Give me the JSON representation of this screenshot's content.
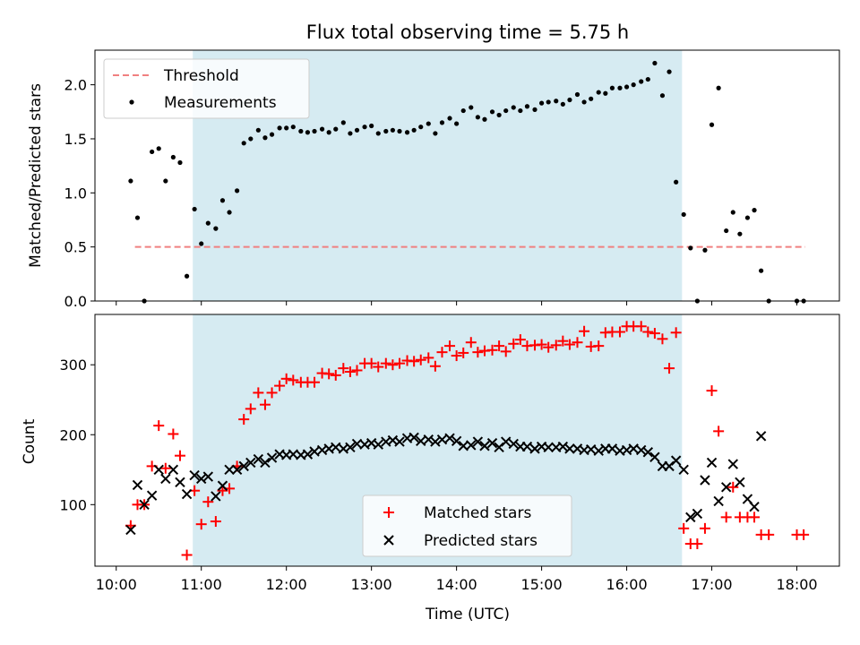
{
  "figure": {
    "title": "Flux total observing time = 5.75 h",
    "xlabel": "Time (UTC)",
    "x_ticks": [
      "10:00",
      "11:00",
      "12:00",
      "13:00",
      "14:00",
      "15:00",
      "16:00",
      "17:00",
      "18:00"
    ],
    "observing_window": {
      "start_h": 10.9,
      "end_h": 16.65,
      "color": "#add8e6"
    }
  },
  "chart_data": [
    {
      "type": "scatter",
      "ylabel": "Matched/Predicted stars",
      "xlim_hours": [
        9.75,
        18.5
      ],
      "ylim": [
        0,
        2.32
      ],
      "y_ticks": [
        "0.0",
        "0.5",
        "1.0",
        "1.5",
        "2.0"
      ],
      "legend_position": "upper left",
      "threshold": {
        "name": "Threshold",
        "y": 0.5,
        "x_range_hours": [
          10.22,
          18.1
        ],
        "color": "#f08080"
      },
      "series": [
        {
          "name": "Measurements",
          "color": "#000000",
          "x_hours": [
            10.17,
            10.25,
            10.33,
            10.42,
            10.5,
            10.58,
            10.67,
            10.75,
            10.83,
            10.92,
            11.0,
            11.08,
            11.17,
            11.25,
            11.33,
            11.42,
            11.5,
            11.58,
            11.67,
            11.75,
            11.83,
            11.92,
            12.0,
            12.08,
            12.17,
            12.25,
            12.33,
            12.42,
            12.5,
            12.58,
            12.67,
            12.75,
            12.83,
            12.92,
            13.0,
            13.08,
            13.17,
            13.25,
            13.33,
            13.42,
            13.5,
            13.58,
            13.67,
            13.75,
            13.83,
            13.92,
            14.0,
            14.08,
            14.17,
            14.25,
            14.33,
            14.42,
            14.5,
            14.58,
            14.67,
            14.75,
            14.83,
            14.92,
            15.0,
            15.08,
            15.17,
            15.25,
            15.33,
            15.42,
            15.5,
            15.58,
            15.67,
            15.75,
            15.83,
            15.92,
            16.0,
            16.08,
            16.17,
            16.25,
            16.33,
            16.42,
            16.5,
            16.58,
            16.67,
            16.75,
            16.83,
            16.92,
            17.0,
            17.08,
            17.17,
            17.25,
            17.33,
            17.42,
            17.5,
            17.58,
            17.67,
            18.0,
            18.08
          ],
          "values": [
            1.11,
            0.77,
            0.0,
            1.38,
            1.41,
            1.11,
            1.33,
            1.28,
            0.23,
            0.85,
            0.53,
            0.72,
            0.67,
            0.93,
            0.82,
            1.02,
            1.46,
            1.5,
            1.58,
            1.51,
            1.54,
            1.6,
            1.6,
            1.61,
            1.57,
            1.56,
            1.57,
            1.59,
            1.56,
            1.59,
            1.65,
            1.55,
            1.58,
            1.61,
            1.62,
            1.55,
            1.57,
            1.58,
            1.57,
            1.56,
            1.58,
            1.61,
            1.64,
            1.55,
            1.65,
            1.69,
            1.64,
            1.76,
            1.79,
            1.7,
            1.68,
            1.75,
            1.72,
            1.76,
            1.79,
            1.76,
            1.8,
            1.77,
            1.83,
            1.84,
            1.85,
            1.82,
            1.86,
            1.91,
            1.84,
            1.87,
            1.93,
            1.92,
            1.97,
            1.97,
            1.98,
            2.0,
            2.03,
            2.05,
            2.2,
            1.9,
            2.12,
            1.1,
            0.8,
            0.49,
            0.0,
            0.47,
            1.63,
            1.97,
            0.65,
            0.82,
            0.62,
            0.77,
            0.84,
            0.28,
            0.0,
            0.0,
            0.0
          ]
        }
      ]
    },
    {
      "type": "scatter",
      "ylabel": "Count",
      "xlim_hours": [
        9.75,
        18.5
      ],
      "ylim": [
        12,
        372
      ],
      "y_ticks": [
        "100",
        "200",
        "300"
      ],
      "legend_position": "lower center",
      "series": [
        {
          "name": "Matched stars",
          "color": "#ff0000",
          "marker": "+",
          "x_hours": [
            10.17,
            10.25,
            10.33,
            10.42,
            10.5,
            10.58,
            10.67,
            10.75,
            10.83,
            10.92,
            11.0,
            11.08,
            11.17,
            11.25,
            11.33,
            11.42,
            11.5,
            11.58,
            11.67,
            11.75,
            11.83,
            11.92,
            12.0,
            12.08,
            12.17,
            12.25,
            12.33,
            12.42,
            12.5,
            12.58,
            12.67,
            12.75,
            12.83,
            12.92,
            13.0,
            13.08,
            13.17,
            13.25,
            13.33,
            13.42,
            13.5,
            13.58,
            13.67,
            13.75,
            13.83,
            13.92,
            14.0,
            14.08,
            14.17,
            14.25,
            14.33,
            14.42,
            14.5,
            14.58,
            14.67,
            14.75,
            14.83,
            14.92,
            15.0,
            15.08,
            15.17,
            15.25,
            15.33,
            15.42,
            15.5,
            15.58,
            15.67,
            15.75,
            15.83,
            15.92,
            16.0,
            16.08,
            16.17,
            16.25,
            16.33,
            16.42,
            16.5,
            16.58,
            16.67,
            16.75,
            16.83,
            16.92,
            17.0,
            17.08,
            17.17,
            17.25,
            17.33,
            17.42,
            17.5,
            17.58,
            17.67,
            18.0,
            18.08
          ],
          "values": [
            70,
            100,
            100,
            155,
            213,
            152,
            201,
            170,
            28,
            120,
            72,
            104,
            76,
            120,
            123,
            155,
            222,
            237,
            260,
            243,
            260,
            270,
            280,
            278,
            275,
            275,
            275,
            288,
            287,
            285,
            295,
            290,
            292,
            302,
            302,
            297,
            302,
            300,
            302,
            306,
            305,
            307,
            310,
            298,
            318,
            327,
            313,
            317,
            332,
            318,
            320,
            321,
            327,
            319,
            330,
            336,
            327,
            328,
            329,
            325,
            328,
            334,
            329,
            332,
            348,
            326,
            327,
            346,
            347,
            347,
            355,
            355,
            355,
            347,
            345,
            337,
            295,
            346,
            66,
            44,
            44,
            66,
            263,
            205,
            82,
            125,
            82,
            82,
            82,
            57,
            57,
            57,
            57
          ]
        },
        {
          "name": "Predicted stars",
          "color": "#000000",
          "marker": "x",
          "x_hours": [
            10.17,
            10.25,
            10.33,
            10.42,
            10.5,
            10.58,
            10.67,
            10.75,
            10.83,
            10.92,
            11.0,
            11.08,
            11.17,
            11.25,
            11.33,
            11.42,
            11.5,
            11.58,
            11.67,
            11.75,
            11.83,
            11.92,
            12.0,
            12.08,
            12.17,
            12.25,
            12.33,
            12.42,
            12.5,
            12.58,
            12.67,
            12.75,
            12.83,
            12.92,
            13.0,
            13.08,
            13.17,
            13.25,
            13.33,
            13.42,
            13.5,
            13.58,
            13.67,
            13.75,
            13.83,
            13.92,
            14.0,
            14.08,
            14.17,
            14.25,
            14.33,
            14.42,
            14.5,
            14.58,
            14.67,
            14.75,
            14.83,
            14.92,
            15.0,
            15.08,
            15.17,
            15.25,
            15.33,
            15.42,
            15.5,
            15.58,
            15.67,
            15.75,
            15.83,
            15.92,
            16.0,
            16.08,
            16.17,
            16.25,
            16.33,
            16.42,
            16.5,
            16.58,
            16.67,
            16.75,
            16.83,
            16.92,
            17.0,
            17.08,
            17.17,
            17.25,
            17.33,
            17.42,
            17.5,
            17.58
          ],
          "values": [
            64,
            128,
            100,
            113,
            150,
            137,
            150,
            132,
            115,
            142,
            137,
            140,
            112,
            127,
            150,
            150,
            155,
            160,
            165,
            160,
            167,
            172,
            171,
            172,
            171,
            172,
            176,
            178,
            180,
            182,
            180,
            182,
            187,
            186,
            188,
            186,
            190,
            192,
            190,
            195,
            196,
            191,
            193,
            190,
            193,
            195,
            191,
            184,
            185,
            190,
            184,
            188,
            182,
            190,
            187,
            183,
            183,
            180,
            183,
            182,
            182,
            183,
            180,
            180,
            178,
            179,
            177,
            180,
            180,
            177,
            178,
            180,
            178,
            175,
            168,
            155,
            155,
            163,
            150,
            82,
            87,
            135,
            160,
            105,
            125,
            158,
            132,
            108,
            97,
            198
          ]
        }
      ]
    }
  ]
}
